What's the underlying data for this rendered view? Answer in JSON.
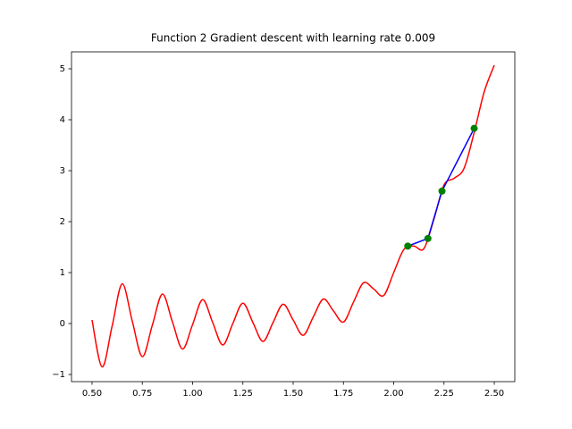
{
  "chart_data": {
    "type": "line",
    "title": "Function 2 Gradient descent with learning rate 0.009",
    "xlim": [
      0.398,
      2.602
    ],
    "ylim": [
      -1.14,
      5.333
    ],
    "xticks": [
      {
        "value": 0.5,
        "label": "0.50"
      },
      {
        "value": 0.75,
        "label": "0.75"
      },
      {
        "value": 1.0,
        "label": "1.00"
      },
      {
        "value": 1.25,
        "label": "1.25"
      },
      {
        "value": 1.5,
        "label": "1.50"
      },
      {
        "value": 1.75,
        "label": "1.75"
      },
      {
        "value": 2.0,
        "label": "2.00"
      },
      {
        "value": 2.25,
        "label": "2.25"
      },
      {
        "value": 2.5,
        "label": "2.50"
      }
    ],
    "yticks": [
      {
        "value": -1,
        "label": "−1"
      },
      0,
      1,
      2,
      3,
      4,
      5
    ],
    "series": [
      {
        "color": "#ff0000",
        "x": [
          0.5,
          0.55,
          0.6,
          0.65,
          0.7,
          0.75,
          0.8,
          0.85,
          0.9,
          0.95,
          1.0,
          1.05,
          1.1,
          1.15,
          1.2,
          1.25,
          1.3,
          1.35,
          1.4,
          1.45,
          1.5,
          1.55,
          1.6,
          1.65,
          1.7,
          1.75,
          1.8,
          1.85,
          1.9,
          1.95,
          2.0,
          2.05,
          2.1,
          2.15,
          2.2,
          2.25,
          2.3,
          2.35,
          2.4,
          2.45,
          2.5
        ],
        "values": [
          0.07,
          -0.85,
          -0.05,
          0.78,
          0.05,
          -0.65,
          -0.03,
          0.58,
          0.03,
          -0.5,
          -0.02,
          0.47,
          0.02,
          -0.42,
          0.0,
          0.4,
          0.02,
          -0.35,
          0.02,
          0.38,
          0.07,
          -0.23,
          0.13,
          0.48,
          0.25,
          0.03,
          0.42,
          0.8,
          0.68,
          0.55,
          1.0,
          1.45,
          1.52,
          1.47,
          2.05,
          2.72,
          2.85,
          3.05,
          3.75,
          4.55,
          5.07
        ]
      },
      {
        "color": "#0000ff",
        "marker_color": "#008000",
        "x": [
          2.4,
          2.24,
          2.17,
          2.07
        ],
        "values": [
          3.83,
          2.6,
          1.67,
          1.52
        ]
      }
    ]
  }
}
